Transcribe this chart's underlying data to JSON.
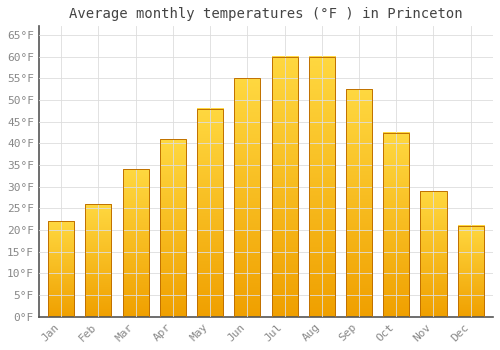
{
  "title": "Average monthly temperatures (°F ) in Princeton",
  "months": [
    "Jan",
    "Feb",
    "Mar",
    "Apr",
    "May",
    "Jun",
    "Jul",
    "Aug",
    "Sep",
    "Oct",
    "Nov",
    "Dec"
  ],
  "values": [
    22,
    26,
    34,
    41,
    48,
    55,
    60,
    60,
    52.5,
    42.5,
    29,
    21
  ],
  "bar_color_bottom": "#F0A000",
  "bar_color_top": "#FFD840",
  "background_color": "#FFFFFF",
  "grid_color": "#DDDDDD",
  "ylim": [
    0,
    67
  ],
  "yticks": [
    0,
    5,
    10,
    15,
    20,
    25,
    30,
    35,
    40,
    45,
    50,
    55,
    60,
    65
  ],
  "title_fontsize": 10,
  "tick_fontsize": 8,
  "font_family": "monospace",
  "tick_color": "#888888",
  "spine_color": "#555555"
}
